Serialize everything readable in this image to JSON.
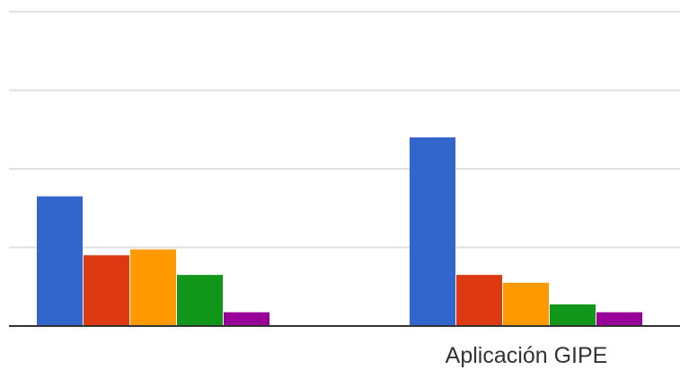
{
  "chart_data": {
    "type": "bar",
    "categories": [
      "",
      "Aplicación GIPE"
    ],
    "series": [
      {
        "color": "#3366cc",
        "values": [
          3.3,
          4.8
        ]
      },
      {
        "color": "#dc3912",
        "values": [
          1.8,
          1.3
        ]
      },
      {
        "color": "#ff9900",
        "values": [
          1.95,
          1.1
        ]
      },
      {
        "color": "#109618",
        "values": [
          1.3,
          0.55
        ]
      },
      {
        "color": "#990099",
        "values": [
          0.35,
          0.35
        ]
      }
    ],
    "ylim": [
      0,
      8
    ],
    "gridlines": [
      2,
      4,
      6,
      8
    ],
    "grid": true,
    "gridline_color": "#e0e0e0",
    "baseline_color": "#333333",
    "title": "",
    "xlabel": "",
    "ylabel": "",
    "legend": "none"
  }
}
